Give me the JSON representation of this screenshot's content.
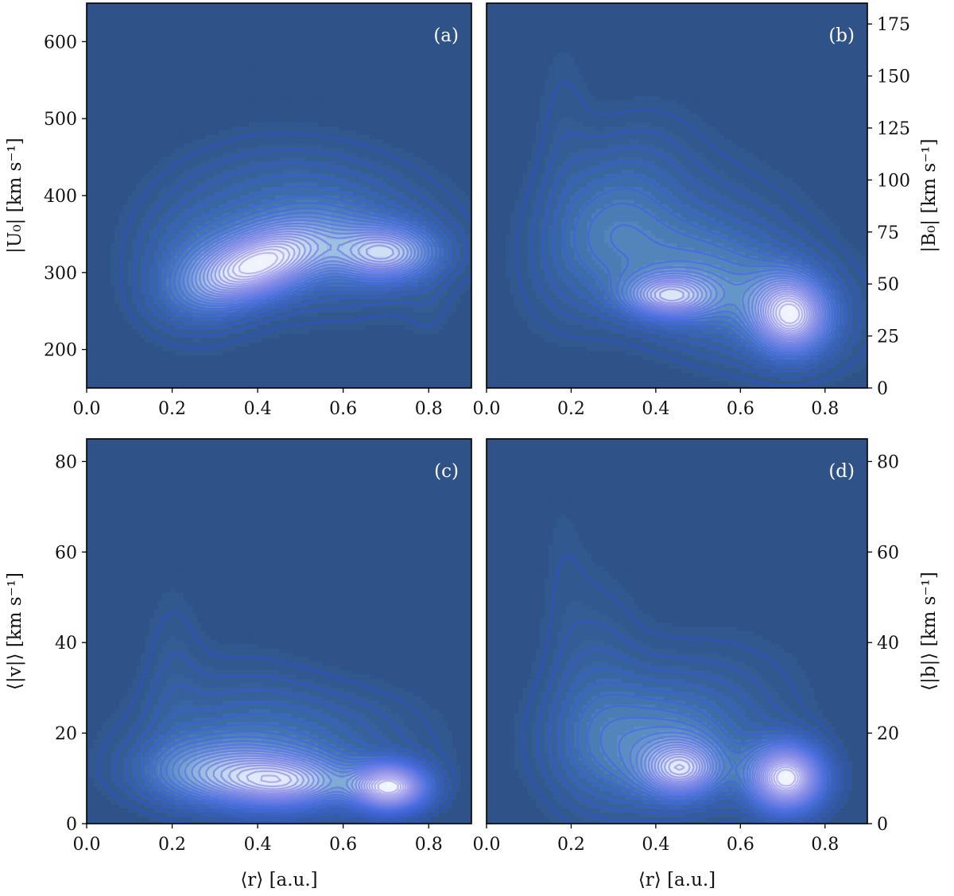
{
  "chart_data": [
    {
      "id": "a",
      "type": "contour",
      "label": "(a)",
      "xlim": [
        0.0,
        0.9
      ],
      "ylim": [
        150,
        650
      ],
      "xticks": [
        "0.0",
        "0.2",
        "0.4",
        "0.6",
        "0.8"
      ],
      "yticks": [
        "200",
        "300",
        "400",
        "500",
        "600"
      ],
      "ytick_values": [
        200,
        300,
        400,
        500,
        600
      ],
      "ylabel": "|U₀| [km s⁻¹]",
      "yaxis_side": "left",
      "xlabel": "",
      "density_peaks": [
        {
          "x": 0.4,
          "y": 310,
          "sx": 0.11,
          "sy": 28,
          "rot": 0.35,
          "w": 1.0
        },
        {
          "x": 0.7,
          "y": 325,
          "sx": 0.08,
          "sy": 24,
          "rot": 0.0,
          "w": 0.75
        },
        {
          "x": 0.55,
          "y": 340,
          "sx": 0.2,
          "sy": 60,
          "rot": 0.0,
          "w": 0.35
        },
        {
          "x": 0.25,
          "y": 300,
          "sx": 0.1,
          "sy": 60,
          "rot": 0.0,
          "w": 0.25
        },
        {
          "x": 0.45,
          "y": 420,
          "sx": 0.18,
          "sy": 50,
          "rot": 0.0,
          "w": 0.12
        },
        {
          "x": 0.4,
          "y": 548,
          "sx": 0.08,
          "sy": 30,
          "rot": 0.0,
          "w": 0.035
        },
        {
          "x": 0.55,
          "y": 545,
          "sx": 0.06,
          "sy": 25,
          "rot": 0.0,
          "w": 0.03
        },
        {
          "x": 0.7,
          "y": 590,
          "sx": 0.05,
          "sy": 18,
          "rot": 0.0,
          "w": 0.02
        },
        {
          "x": 0.8,
          "y": 250,
          "sx": 0.04,
          "sy": 30,
          "rot": 0.0,
          "w": 0.06
        }
      ]
    },
    {
      "id": "b",
      "type": "contour",
      "label": "(b)",
      "xlim": [
        0.0,
        0.9
      ],
      "ylim": [
        0,
        185
      ],
      "xticks": [
        "0.0",
        "0.2",
        "0.4",
        "0.6",
        "0.8"
      ],
      "yticks": [
        "0",
        "25",
        "50",
        "75",
        "100",
        "125",
        "150",
        "175"
      ],
      "ytick_values": [
        0,
        25,
        50,
        75,
        100,
        125,
        150,
        175
      ],
      "ylabel": "|B₀| [km s⁻¹]",
      "yaxis_side": "right",
      "xlabel": "",
      "density_peaks": [
        {
          "x": 0.72,
          "y": 35,
          "sx": 0.06,
          "sy": 12,
          "rot": -0.5,
          "w": 1.0
        },
        {
          "x": 0.43,
          "y": 44,
          "sx": 0.07,
          "sy": 7,
          "rot": 0.0,
          "w": 0.7
        },
        {
          "x": 0.55,
          "y": 50,
          "sx": 0.2,
          "sy": 22,
          "rot": -0.3,
          "w": 0.45
        },
        {
          "x": 0.28,
          "y": 80,
          "sx": 0.1,
          "sy": 35,
          "rot": -0.5,
          "w": 0.25
        },
        {
          "x": 0.18,
          "y": 130,
          "sx": 0.05,
          "sy": 35,
          "rot": 0.0,
          "w": 0.08
        },
        {
          "x": 0.5,
          "y": 90,
          "sx": 0.2,
          "sy": 25,
          "rot": 0.0,
          "w": 0.08
        }
      ]
    },
    {
      "id": "c",
      "type": "contour",
      "label": "(c)",
      "xlim": [
        0.0,
        0.9
      ],
      "ylim": [
        0,
        85
      ],
      "xticks": [
        "0.0",
        "0.2",
        "0.4",
        "0.6",
        "0.8"
      ],
      "yticks": [
        "0",
        "20",
        "40",
        "60",
        "80"
      ],
      "ytick_values": [
        0,
        20,
        40,
        60,
        80
      ],
      "ylabel": "⟨|v|⟩ [km s⁻¹]",
      "yaxis_side": "left",
      "xlabel": "⟨r⟩ [a.u.]",
      "density_peaks": [
        {
          "x": 0.71,
          "y": 8,
          "sx": 0.06,
          "sy": 3.5,
          "rot": 0.0,
          "w": 1.0
        },
        {
          "x": 0.47,
          "y": 9,
          "sx": 0.1,
          "sy": 4,
          "rot": 0.0,
          "w": 0.6
        },
        {
          "x": 0.3,
          "y": 11,
          "sx": 0.12,
          "sy": 5,
          "rot": 0.0,
          "w": 0.45
        },
        {
          "x": 0.45,
          "y": 18,
          "sx": 0.22,
          "sy": 9,
          "rot": 0.0,
          "w": 0.25
        },
        {
          "x": 0.2,
          "y": 35,
          "sx": 0.05,
          "sy": 15,
          "rot": 0.0,
          "w": 0.08
        },
        {
          "x": 0.35,
          "y": 30,
          "sx": 0.12,
          "sy": 10,
          "rot": 0.0,
          "w": 0.05
        }
      ]
    },
    {
      "id": "d",
      "type": "contour",
      "label": "(d)",
      "xlim": [
        0.0,
        0.9
      ],
      "ylim": [
        0,
        85
      ],
      "xticks": [
        "0.0",
        "0.2",
        "0.4",
        "0.6",
        "0.8"
      ],
      "yticks": [
        "0",
        "20",
        "40",
        "60",
        "80"
      ],
      "ytick_values": [
        0,
        20,
        40,
        60,
        80
      ],
      "ylabel": "⟨|b|⟩ [km s⁻¹]",
      "yaxis_side": "right",
      "xlabel": "⟨r⟩ [a.u.]",
      "density_peaks": [
        {
          "x": 0.71,
          "y": 10,
          "sx": 0.06,
          "sy": 5,
          "rot": 0.0,
          "w": 1.0
        },
        {
          "x": 0.46,
          "y": 12,
          "sx": 0.06,
          "sy": 4,
          "rot": 0.0,
          "w": 0.6
        },
        {
          "x": 0.4,
          "y": 17,
          "sx": 0.16,
          "sy": 10,
          "rot": 0.0,
          "w": 0.35
        },
        {
          "x": 0.25,
          "y": 30,
          "sx": 0.08,
          "sy": 18,
          "rot": 0.0,
          "w": 0.12
        },
        {
          "x": 0.18,
          "y": 60,
          "sx": 0.04,
          "sy": 15,
          "rot": 0.0,
          "w": 0.04
        },
        {
          "x": 0.55,
          "y": 30,
          "sx": 0.18,
          "sy": 12,
          "rot": 0.0,
          "w": 0.07
        }
      ]
    }
  ],
  "colors": {
    "background": "#2f5389",
    "outer_line": "#2a4fb8",
    "inner_line": "#b8b0ec",
    "fill_low": "#2f5389",
    "fill_high": "#f4f7fd"
  }
}
